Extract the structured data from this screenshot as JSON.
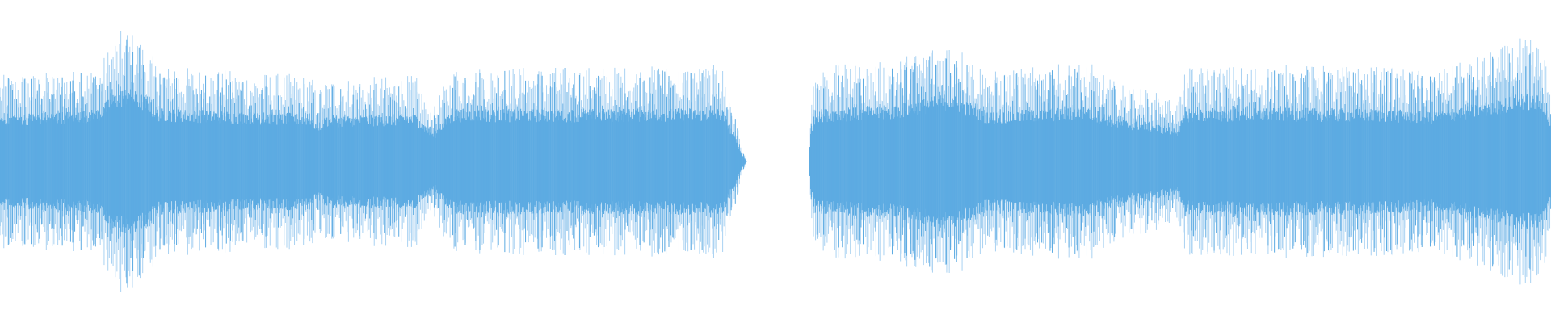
{
  "waveform": {
    "color": "#5dabe2",
    "peak_color": "#a9d2f2"
  }
}
